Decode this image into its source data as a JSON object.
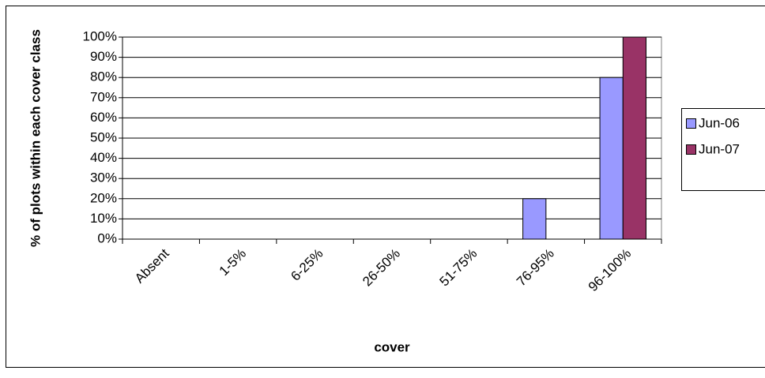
{
  "chart_data": {
    "type": "bar",
    "y_label": "% of plots within each cover class",
    "x_label": "cover",
    "categories": [
      "Absent",
      "1-5%",
      "6-25%",
      "26-50%",
      "51-75%",
      "76-95%",
      "96-100%"
    ],
    "series": [
      {
        "name": "Jun-06",
        "color": "#9999ff",
        "values": [
          0,
          0,
          0,
          0,
          0,
          20,
          80
        ]
      },
      {
        "name": "Jun-07",
        "color": "#993366",
        "values": [
          0,
          0,
          0,
          0,
          0,
          0,
          100
        ]
      }
    ],
    "ylim": [
      0,
      100
    ],
    "yticks": [
      {
        "value": 0,
        "label": "0%"
      },
      {
        "value": 10,
        "label": "10%"
      },
      {
        "value": 20,
        "label": "20%"
      },
      {
        "value": 30,
        "label": "30%"
      },
      {
        "value": 40,
        "label": "40%"
      },
      {
        "value": 50,
        "label": "50%"
      },
      {
        "value": 60,
        "label": "60%"
      },
      {
        "value": 70,
        "label": "70%"
      },
      {
        "value": 80,
        "label": "80%"
      },
      {
        "value": 90,
        "label": "90%"
      },
      {
        "value": 100,
        "label": "100%"
      }
    ],
    "grid": true,
    "legend": "right"
  }
}
